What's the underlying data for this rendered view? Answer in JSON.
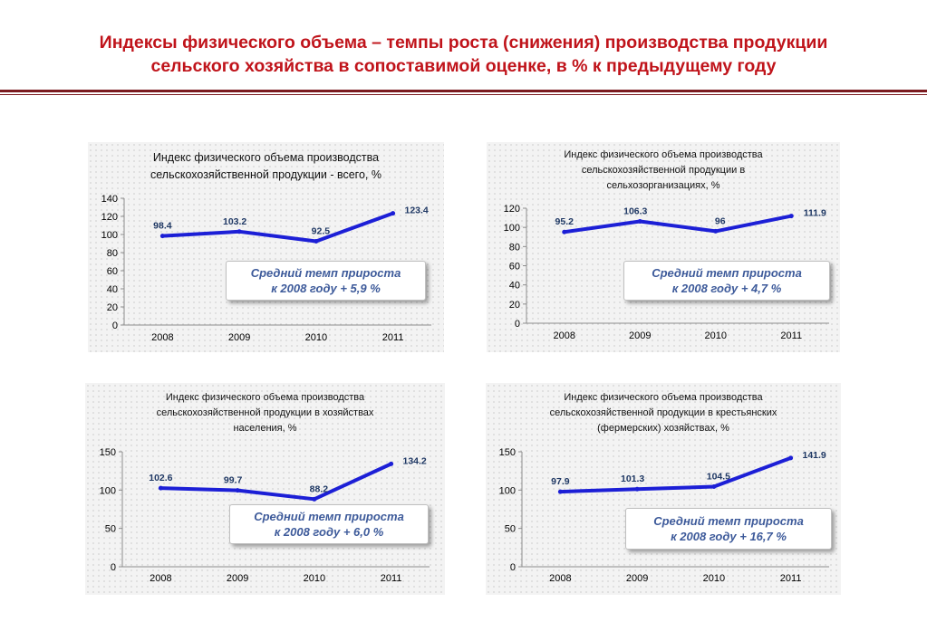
{
  "header": {
    "title_line1": "Индексы физического объема – темпы роста (снижения) производства продукции",
    "title_line2": "сельского хозяйства в сопоставимой оценке, в % к предыдущему году"
  },
  "colors": {
    "title": "#c0141b",
    "line": "#1c1fd6",
    "labels": "#1f3864",
    "rule": "#7b1b20",
    "note": "#3d5a9a"
  },
  "chart_data": [
    {
      "type": "line",
      "title_lines": [
        "Индекс физического объема производства",
        "сельскохозяйственной продукции - всего,  %"
      ],
      "categories": [
        "2008",
        "2009",
        "2010",
        "2011"
      ],
      "values": [
        98.4,
        103.2,
        92.5,
        123.4
      ],
      "value_labels": [
        "98.4",
        "103.2",
        "92.5",
        "123.4"
      ],
      "ylim": [
        0,
        140
      ],
      "yticks": [
        "0",
        "20",
        "40",
        "60",
        "80",
        "100",
        "120",
        "140"
      ],
      "note_lines": [
        "Средний темп прироста",
        "к 2008 году + 5,9 %"
      ],
      "legend": "none"
    },
    {
      "type": "line",
      "title_lines": [
        "Индекс физического объема производства",
        "сельскохозяйственной продукции в",
        "сельхозорганизациях,  %"
      ],
      "categories": [
        "2008",
        "2009",
        "2010",
        "2011"
      ],
      "values": [
        95.2,
        106.3,
        96,
        111.9
      ],
      "value_labels": [
        "95.2",
        "106.3",
        "96",
        "111.9"
      ],
      "ylim": [
        0,
        120
      ],
      "yticks": [
        "0",
        "20",
        "40",
        "60",
        "80",
        "100",
        "120"
      ],
      "note_lines": [
        "Средний темп прироста",
        "к 2008 году + 4,7 %"
      ],
      "legend": "none"
    },
    {
      "type": "line",
      "title_lines": [
        "Индекс физического объема производства",
        "сельскохозяйственной продукции в хозяйствах",
        "населения,  %"
      ],
      "categories": [
        "2008",
        "2009",
        "2010",
        "2011"
      ],
      "values": [
        102.6,
        99.7,
        88.2,
        134.2
      ],
      "value_labels": [
        "102.6",
        "99.7",
        "88.2",
        "134.2"
      ],
      "ylim": [
        0,
        150
      ],
      "yticks": [
        "0",
        "50",
        "100",
        "150"
      ],
      "note_lines": [
        "Средний темп прироста",
        "к 2008 году + 6,0 %"
      ],
      "legend": "none"
    },
    {
      "type": "line",
      "title_lines": [
        "Индекс физического объема производства",
        "сельскохозяйственной продукции в крестьянских",
        "(фермерских) хозяйствах,  %"
      ],
      "categories": [
        "2008",
        "2009",
        "2010",
        "2011"
      ],
      "values": [
        97.9,
        101.3,
        104.5,
        141.9
      ],
      "value_labels": [
        "97.9",
        "101.3",
        "104.5",
        "141.9"
      ],
      "ylim": [
        0,
        150
      ],
      "yticks": [
        "0",
        "50",
        "100",
        "150"
      ],
      "note_lines": [
        "Средний темп прироста",
        "к 2008 году + 16,7 %"
      ],
      "legend": "none"
    }
  ]
}
